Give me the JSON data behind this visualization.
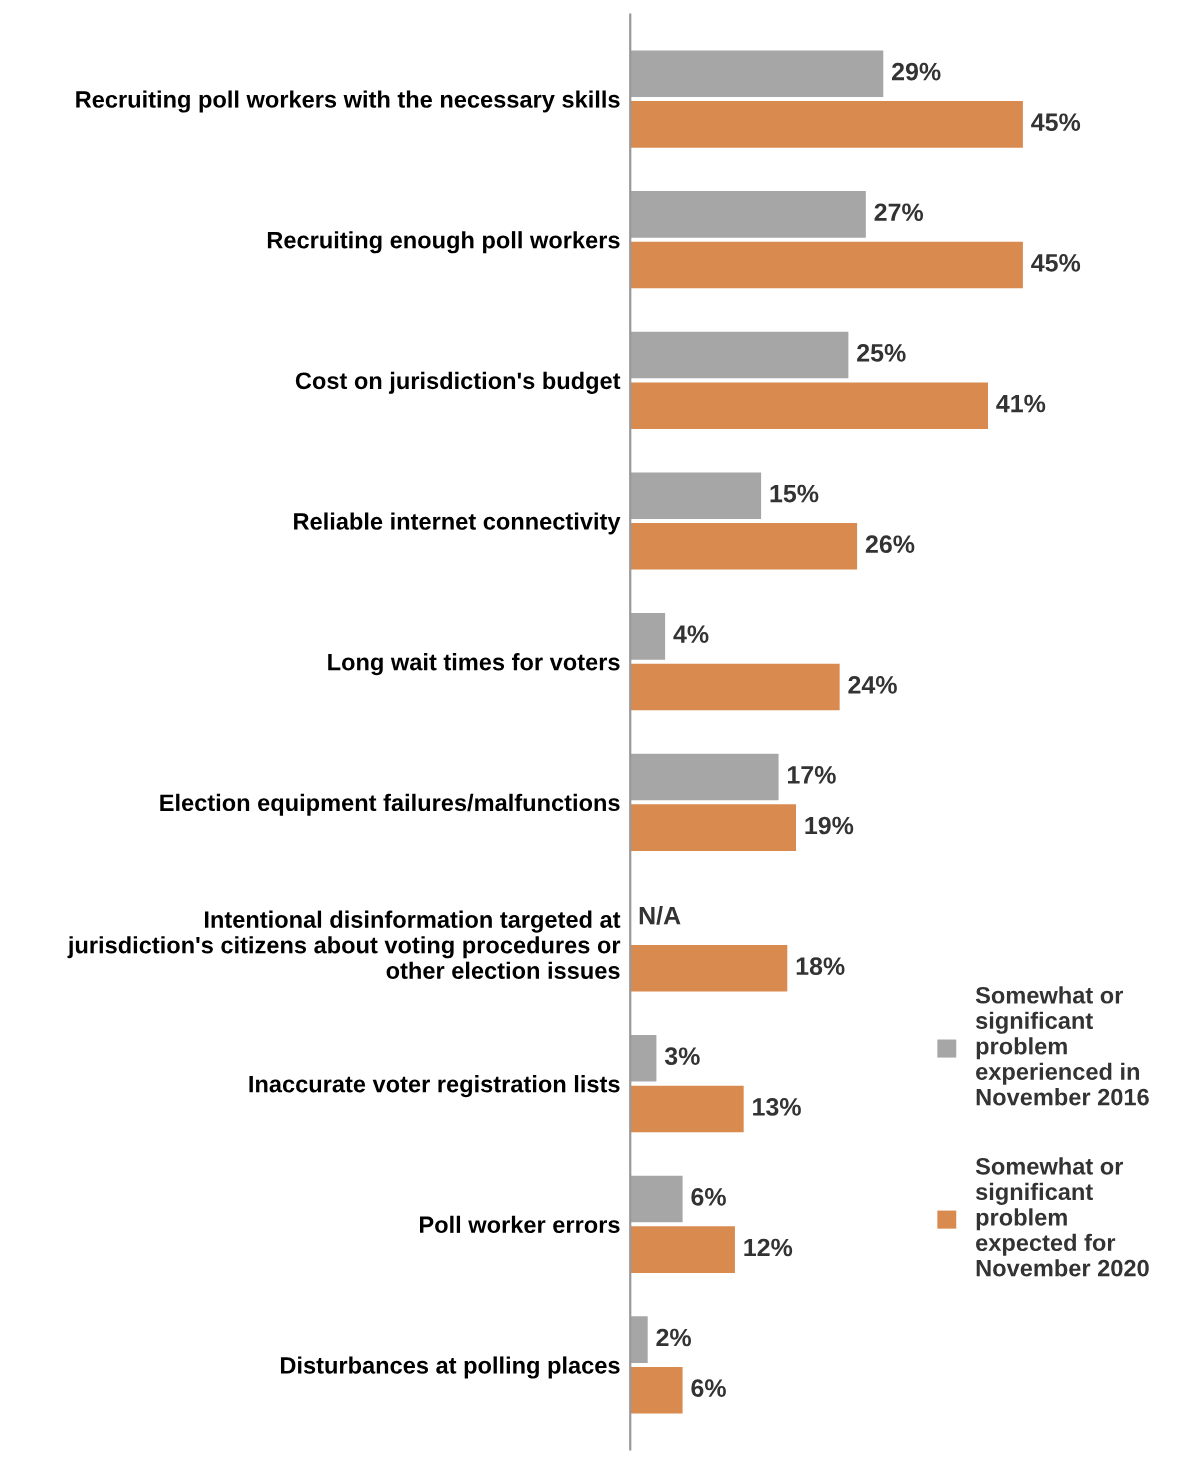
{
  "chart_data": {
    "type": "bar",
    "orientation": "horizontal",
    "categories": [
      "Recruiting poll workers with the necessary skills",
      "Recruiting enough poll workers",
      "Cost on jurisdiction's budget",
      "Reliable internet connectivity",
      "Long wait times for voters",
      "Election equipment failures/malfunctions",
      "Intentional disinformation targeted at\njurisdiction's citizens about voting procedures or\nother election issues",
      "Inaccurate voter registration lists",
      "Poll worker errors",
      "Disturbances at polling places"
    ],
    "series": [
      {
        "name": "Somewhat or\nsignificant\nproblem\nexperienced in\nNovember 2016",
        "color": "#a6a6a6",
        "values": [
          29,
          27,
          25,
          15,
          4,
          17,
          null,
          3,
          6,
          2
        ],
        "value_labels": [
          "29%",
          "27%",
          "25%",
          "15%",
          "4%",
          "17%",
          "N/A",
          "3%",
          "6%",
          "2%"
        ]
      },
      {
        "name": "Somewhat or\nsignificant\nproblem\nexpected for\nNovember 2020",
        "color": "#d98a4e",
        "values": [
          45,
          45,
          41,
          26,
          24,
          19,
          18,
          13,
          12,
          6
        ],
        "value_labels": [
          "45%",
          "45%",
          "41%",
          "26%",
          "24%",
          "19%",
          "18%",
          "13%",
          "12%",
          "6%"
        ]
      }
    ],
    "legend": "right",
    "grid": false,
    "tick_labels": "y"
  }
}
